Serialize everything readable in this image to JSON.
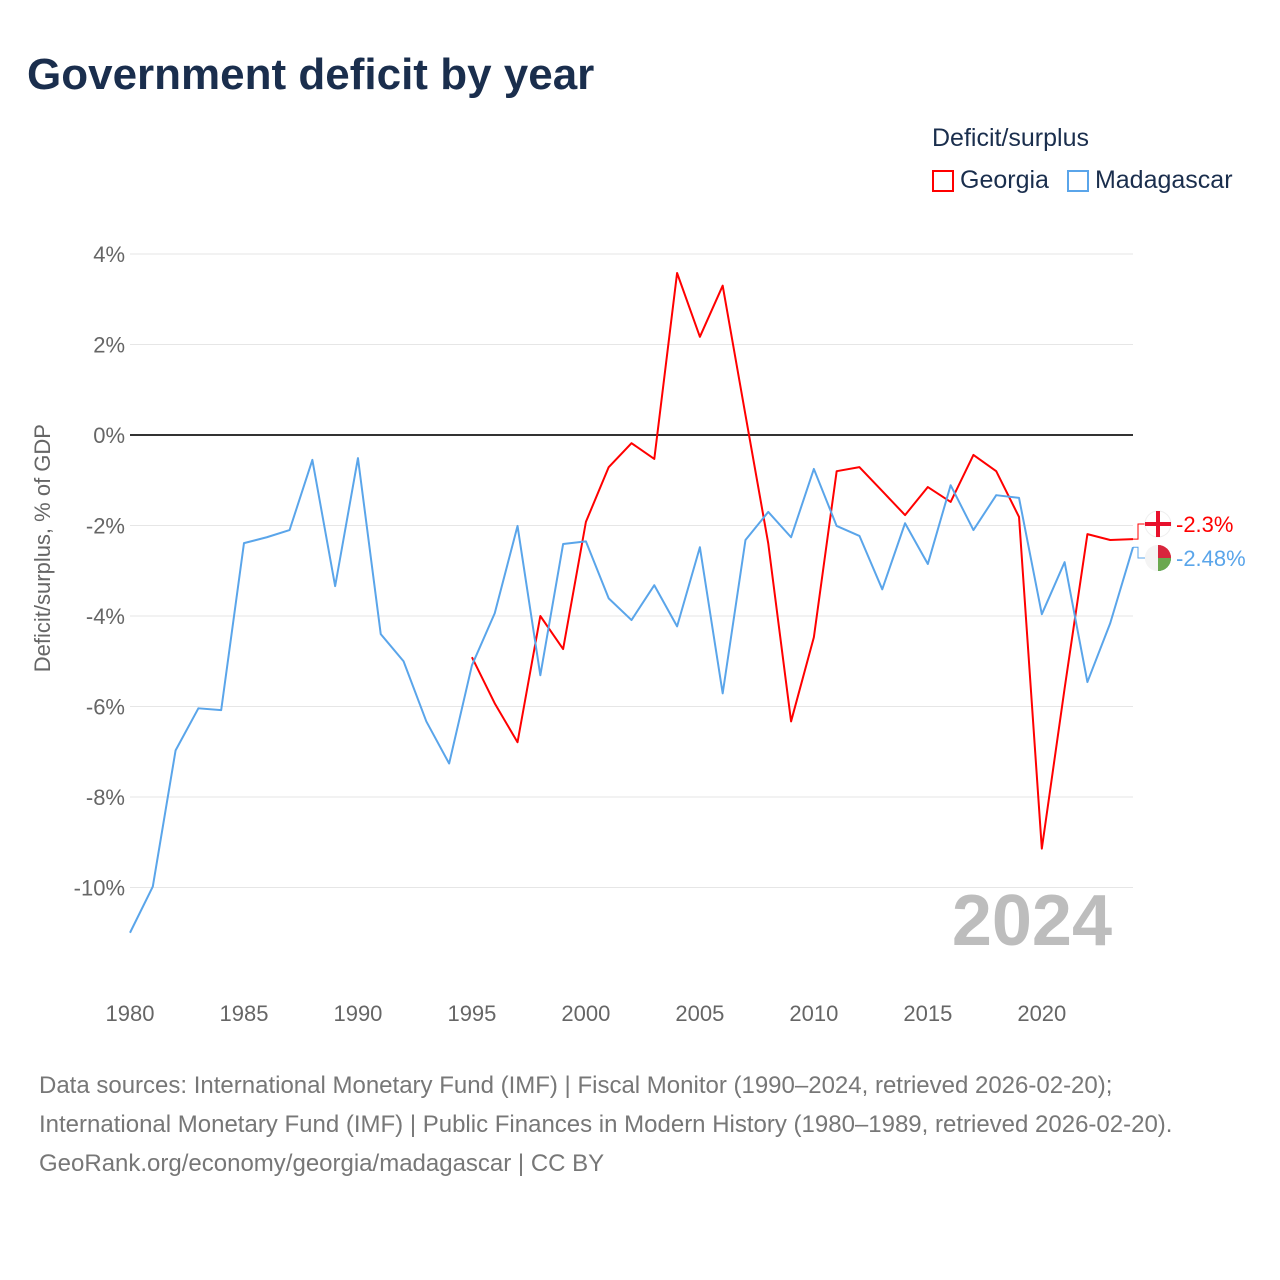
{
  "title": "Government deficit by year",
  "legend": {
    "title": "Deficit/surplus",
    "items": [
      {
        "name": "Georgia",
        "color": "#ff0000"
      },
      {
        "name": "Madagascar",
        "color": "#5aa5ea"
      }
    ]
  },
  "footer": {
    "sources": "Data sources: International Monetary Fund (IMF) | Fiscal Monitor (1990–2024, retrieved 2026-02-20); International Monetary Fund (IMF) | Public Finances in Modern History (1980–1989, retrieved 2026-02-20).",
    "credit": "GeoRank.org/economy/georgia/madagascar | CC BY"
  },
  "chart_data": {
    "type": "line",
    "title": "Government deficit by year",
    "xlabel": "",
    "ylabel": "Deficit/surplus, % of GDP",
    "xlim": [
      1980,
      2024
    ],
    "ylim": [
      -11,
      4
    ],
    "xticks": [
      1980,
      1985,
      1990,
      1995,
      2000,
      2005,
      2010,
      2015,
      2020
    ],
    "yticks": [
      {
        "v": 4,
        "label": "4%"
      },
      {
        "v": 2,
        "label": "2%"
      },
      {
        "v": 0,
        "label": "0%"
      },
      {
        "v": -2,
        "label": "-2%"
      },
      {
        "v": -4,
        "label": "-4%"
      },
      {
        "v": -6,
        "label": "-6%"
      },
      {
        "v": -8,
        "label": "-8%"
      },
      {
        "v": -10,
        "label": "-10%"
      }
    ],
    "year_watermark": "2024",
    "series": [
      {
        "name": "Georgia",
        "color": "#ff0000",
        "end_label": "-2.3%",
        "start": 1995,
        "values": [
          -4.91,
          -5.93,
          -6.79,
          -4.0,
          -4.73,
          -1.92,
          -0.71,
          -0.18,
          -0.53,
          3.58,
          2.17,
          3.3,
          0.44,
          -2.4,
          -6.33,
          -4.47,
          -0.8,
          -0.71,
          -1.24,
          -1.77,
          -1.15,
          -1.48,
          -0.44,
          -0.8,
          -1.81,
          -9.14,
          -5.6,
          -2.19,
          -2.32,
          -2.3
        ]
      },
      {
        "name": "Madagascar",
        "color": "#5aa5ea",
        "end_label": "-2.48%",
        "start": 1980,
        "values": [
          -11.0,
          -9.98,
          -6.97,
          -6.04,
          -6.08,
          -2.39,
          -2.26,
          -2.1,
          -0.55,
          -3.34,
          -0.51,
          -4.4,
          -5.0,
          -6.33,
          -7.26,
          -5.09,
          -3.94,
          -2.01,
          -5.31,
          -2.41,
          -2.35,
          -3.61,
          -4.09,
          -3.32,
          -4.23,
          -2.48,
          -5.71,
          -2.32,
          -1.7,
          -2.26,
          -0.75,
          -2.01,
          -2.23,
          -3.41,
          -1.95,
          -2.85,
          -1.11,
          -2.1,
          -1.33,
          -1.39,
          -3.96,
          -2.81,
          -5.46,
          -4.16,
          -2.48
        ]
      }
    ]
  }
}
